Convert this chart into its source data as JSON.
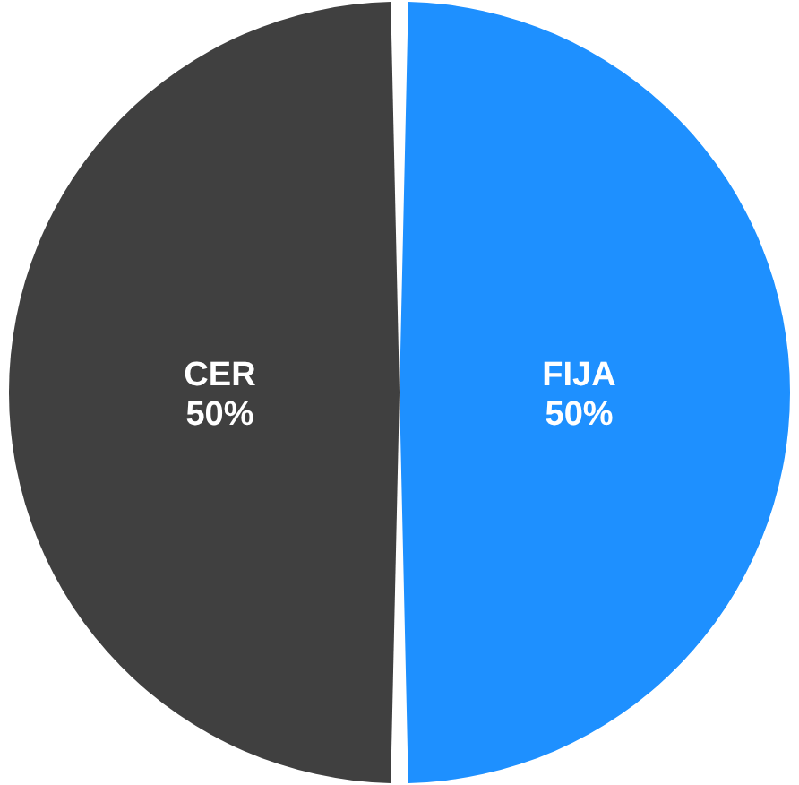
{
  "chart_data": {
    "type": "pie",
    "categories": [
      "FIJA",
      "CER"
    ],
    "values": [
      50,
      50
    ],
    "colors": [
      "#1e90ff",
      "#404040"
    ],
    "value_labels": [
      "50%",
      "50%"
    ]
  }
}
